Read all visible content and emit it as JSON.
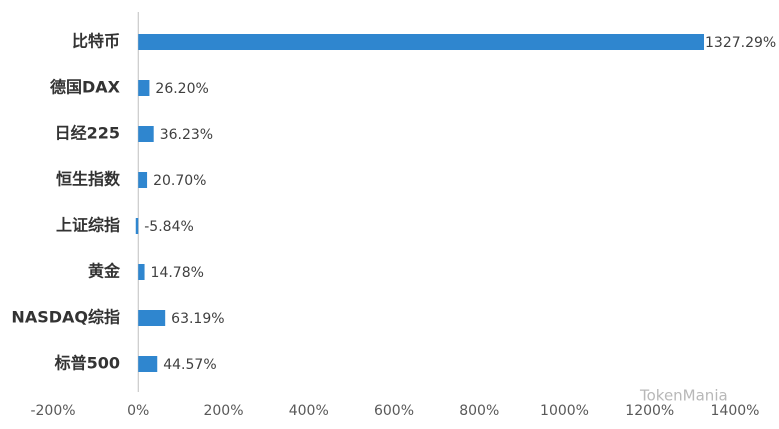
{
  "chart_data": {
    "type": "bar",
    "orientation": "horizontal",
    "categories": [
      "比特币",
      "德国DAX",
      "日经225",
      "恒生指数",
      "上证综指",
      "黄金",
      "NASDAQ综指",
      "标普500"
    ],
    "values": [
      1327.29,
      26.2,
      36.23,
      20.7,
      -5.84,
      14.78,
      63.19,
      44.57
    ],
    "value_labels": [
      "1327.29%",
      "26.20%",
      "36.23%",
      "20.70%",
      "-5.84%",
      "14.78%",
      "63.19%",
      "44.57%"
    ],
    "color": "#2f86cf",
    "xlim": [
      -200,
      1400
    ],
    "xticks": [
      {
        "value": -200,
        "label": "-200%"
      },
      {
        "value": 0,
        "label": "0%"
      },
      {
        "value": 200,
        "label": "200%"
      },
      {
        "value": 400,
        "label": "400%"
      },
      {
        "value": 600,
        "label": "600%"
      },
      {
        "value": 800,
        "label": "800%"
      },
      {
        "value": 1000,
        "label": "1000%"
      },
      {
        "value": 1200,
        "label": "1200%"
      },
      {
        "value": 1400,
        "label": "1400%"
      }
    ],
    "watermark": "TokenMania"
  }
}
